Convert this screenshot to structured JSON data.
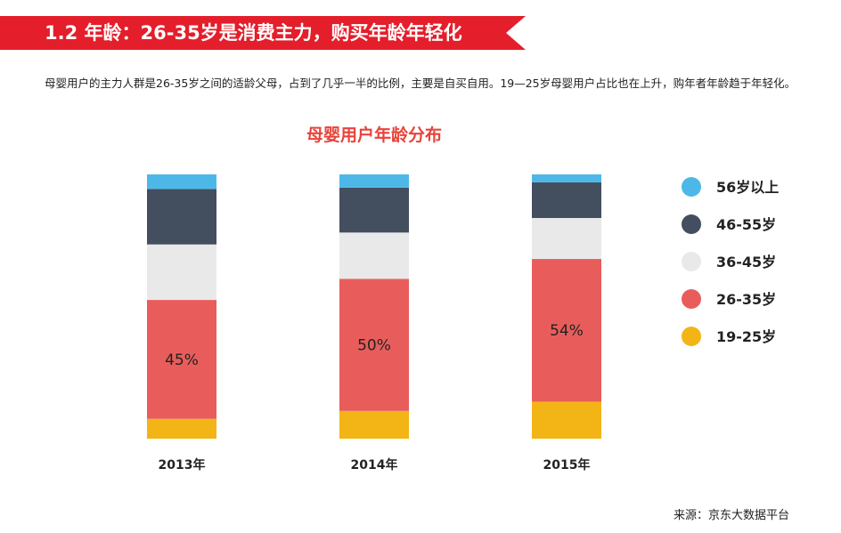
{
  "header": {
    "title": "1.2 年龄：26-35岁是消费主力，购买年龄年轻化",
    "accent_color": "#e41e2b"
  },
  "intro": {
    "text": "母婴用户的主力人群是26-35岁之间的适龄父母，占到了几乎一半的比例，主要是自买自用。19—25岁母婴用户占比也在上升，购年者年龄趋于年轻化。"
  },
  "source": "来源：京东大数据平台",
  "chart_data": {
    "type": "bar",
    "stacked": true,
    "title": "母婴用户年龄分布",
    "categories": [
      "2013年",
      "2014年",
      "2015年"
    ],
    "ylim": [
      0,
      100
    ],
    "legend_position": "right",
    "grid": false,
    "series": [
      {
        "name": "19-25岁",
        "color": "#f2b515",
        "values": [
          7.5,
          10.5,
          14
        ]
      },
      {
        "name": "26-35岁",
        "color": "#e85d5b",
        "values": [
          45,
          50,
          54
        ],
        "labels": [
          "45%",
          "50%",
          "54%"
        ]
      },
      {
        "name": "36-45岁",
        "color": "#e9e9e9",
        "values": [
          21,
          17.5,
          15.5
        ]
      },
      {
        "name": "46-55岁",
        "color": "#434f5f",
        "values": [
          21,
          17,
          13.5
        ]
      },
      {
        "name": "56岁以上",
        "color": "#4db8e8",
        "values": [
          5.5,
          5,
          3
        ]
      }
    ],
    "legend_order": [
      "56岁以上",
      "46-55岁",
      "36-45岁",
      "26-35岁",
      "19-25岁"
    ]
  }
}
